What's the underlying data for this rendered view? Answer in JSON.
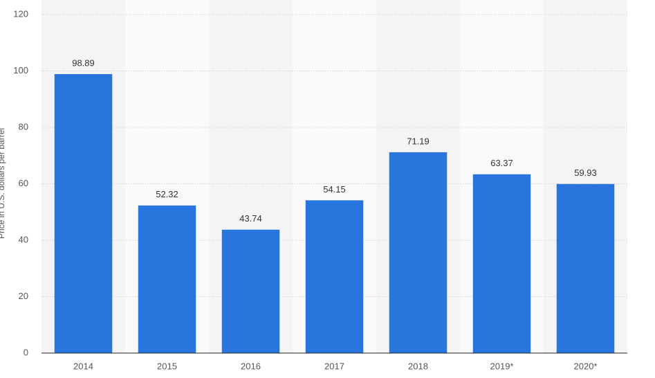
{
  "chart_data": {
    "type": "bar",
    "y_label": "Price in U.S. dollars per barrel",
    "categories": [
      "2014",
      "2015",
      "2016",
      "2017",
      "2018",
      "2019*",
      "2020*"
    ],
    "values": [
      98.89,
      52.32,
      43.74,
      54.15,
      71.19,
      63.37,
      59.93
    ],
    "color": "#2876dd",
    "ylim": [
      0,
      120
    ],
    "yticks": [
      0,
      20,
      40,
      60,
      80,
      100,
      120
    ],
    "grid": true
  }
}
